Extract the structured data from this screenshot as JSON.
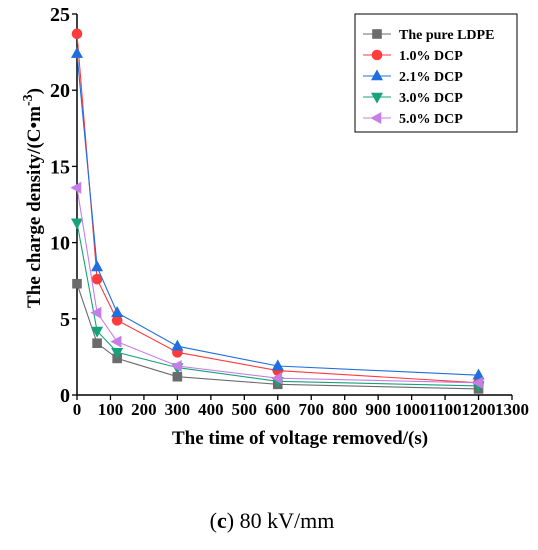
{
  "chart_data": {
    "type": "line",
    "xlabel": "The time of voltage removed/(s)",
    "ylabel": "The charge density/(C•m",
    "ylabel_exponent": "-3",
    "ylabel_close": ")",
    "xlim": [
      0,
      1300
    ],
    "ylim": [
      0,
      25
    ],
    "x_ticks": [
      "0",
      "100",
      "200",
      "300",
      "400",
      "500",
      "600",
      "700",
      "800",
      "900",
      "1000",
      "1100",
      "1200",
      "1300"
    ],
    "y_ticks": [
      "0",
      "5",
      "10",
      "15",
      "20",
      "25"
    ],
    "x": [
      0,
      60,
      120,
      300,
      600,
      1200
    ],
    "series": [
      {
        "name": "The pure LDPE",
        "color": "#6b6b6b",
        "marker": "square",
        "values": [
          7.3,
          3.4,
          2.4,
          1.2,
          0.7,
          0.4
        ]
      },
      {
        "name": "1.0% DCP",
        "color": "#ff3b3b",
        "marker": "circle",
        "values": [
          23.7,
          7.6,
          4.9,
          2.8,
          1.6,
          0.8
        ]
      },
      {
        "name": "2.1% DCP",
        "color": "#1f6fde",
        "marker": "triangle-up",
        "values": [
          22.4,
          8.4,
          5.4,
          3.2,
          1.9,
          1.3
        ]
      },
      {
        "name": "3.0% DCP",
        "color": "#14a37a",
        "marker": "triangle-down",
        "values": [
          11.3,
          4.2,
          2.8,
          1.8,
          0.9,
          0.6
        ]
      },
      {
        "name": "5.0% DCP",
        "color": "#c47ee6",
        "marker": "triangle-left",
        "values": [
          13.6,
          5.4,
          3.5,
          1.9,
          1.1,
          0.8
        ]
      }
    ],
    "legend_position": "top-right",
    "grid": false
  },
  "caption": {
    "open": "(",
    "letter": "c",
    "close": ")",
    "text": " 80 kV/mm"
  }
}
